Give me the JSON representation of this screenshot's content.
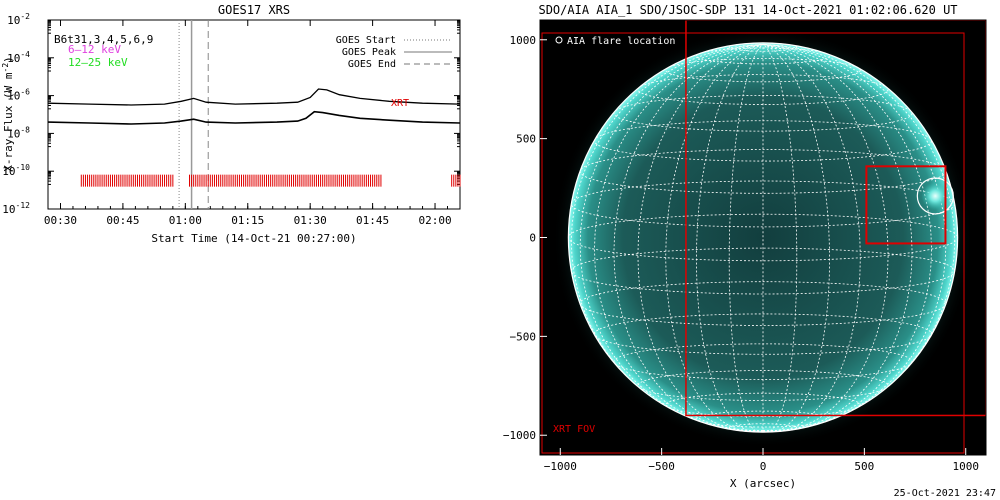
{
  "footer_timestamp": "25-Oct-2021 23:47",
  "colors": {
    "flux_line": "#000000",
    "band_6_12": "#e040e0",
    "band_12_25": "#22dd22",
    "xrt_marks": "#e00000",
    "euv_disk": "#2fbfb4",
    "grid": "#ffffff",
    "fov": "#e00000"
  },
  "chart_data": [
    {
      "type": "line",
      "title": "GOES17 XRS",
      "xlabel": "Start Time (14-Oct-21 00:27:00)",
      "ylabel": "X-ray Flux (W m⁻²)",
      "ylabel_main": "X-ray Flux (W m",
      "ylabel_exp": "-2",
      "ylabel_close": ")",
      "yscale": "log",
      "ylim_exponents": [
        -12,
        -2
      ],
      "y_tick_base": "10",
      "y_tick_exponents": [
        "-12",
        "-10",
        "-8",
        "-6",
        "-4",
        "-2"
      ],
      "xlim_minutes_after_0027": [
        0,
        99
      ],
      "x_ticks": [
        {
          "minutes": 3,
          "label": "00:30"
        },
        {
          "minutes": 18,
          "label": "00:45"
        },
        {
          "minutes": 33,
          "label": "01:00"
        },
        {
          "minutes": 48,
          "label": "01:15"
        },
        {
          "minutes": 63,
          "label": "01:30"
        },
        {
          "minutes": 78,
          "label": "01:45"
        },
        {
          "minutes": 93,
          "label": "02:00"
        }
      ],
      "band_labels": [
        {
          "text": "B6t31,3,4,5,6,9",
          "color": "#000000"
        },
        {
          "text": "6–12 keV",
          "color": "#e040e0"
        },
        {
          "text": "12–25 keV",
          "color": "#22dd22"
        }
      ],
      "legend": {
        "placement": "top-right",
        "entries": [
          {
            "label": "GOES Start",
            "style": "dotted"
          },
          {
            "label": "GOES Peak",
            "style": "solid"
          },
          {
            "label": "GOES End",
            "style": "dashed"
          }
        ]
      },
      "xrt_label": "XRT",
      "goes_start_minute": 31.5,
      "goes_peak_minute": 34.5,
      "goes_end_minute": 38.5,
      "series": [
        {
          "name": "XRS long",
          "x_minutes": [
            0,
            10,
            20,
            28,
            32,
            35,
            38,
            45,
            55,
            60,
            63,
            65,
            67,
            70,
            75,
            82,
            90,
            99
          ],
          "log10_flux": [
            -6.4,
            -6.45,
            -6.5,
            -6.45,
            -6.3,
            -6.15,
            -6.35,
            -6.45,
            -6.4,
            -6.35,
            -6.1,
            -5.65,
            -5.7,
            -5.95,
            -6.15,
            -6.3,
            -6.4,
            -6.45
          ]
        },
        {
          "name": "XRS short",
          "x_minutes": [
            0,
            10,
            20,
            28,
            32,
            35,
            38,
            45,
            55,
            60,
            62,
            64,
            66,
            70,
            75,
            82,
            90,
            99
          ],
          "log10_flux": [
            -7.4,
            -7.45,
            -7.5,
            -7.45,
            -7.35,
            -7.25,
            -7.4,
            -7.45,
            -7.4,
            -7.35,
            -7.2,
            -6.85,
            -6.9,
            -7.05,
            -7.2,
            -7.3,
            -7.4,
            -7.45
          ]
        }
      ],
      "xrt_observation_segments_minutes": [
        [
          8,
          30
        ],
        [
          34,
          80
        ],
        [
          97,
          99
        ]
      ],
      "xrt_observation_level_log10": -10.5
    },
    {
      "type": "heatmap",
      "title": "SDO/AIA AIA_1 SDO/JSOC-SDP 131 14-Oct-2021 01:02:06.620 UT",
      "xlabel": "X (arcsec)",
      "xlim": [
        -1100,
        1100
      ],
      "ylim": [
        -1100,
        1100
      ],
      "x_ticks": [
        -1000,
        -500,
        0,
        500,
        1000
      ],
      "y_ticks": [
        1000,
        500,
        0,
        -500,
        -1000
      ],
      "solar_radius_arcsec": 960,
      "flare_legend": "AIA flare location",
      "flare_location_arcsec": [
        850,
        210
      ],
      "xrt_fov_label": "XRT FOV",
      "xrt_fov_arcsec": {
        "x": [
          -380,
          1100
        ],
        "y": [
          -900,
          1100
        ]
      },
      "xrt_zoom_box_arcsec": {
        "x": [
          510,
          900
        ],
        "y": [
          -30,
          360
        ]
      }
    }
  ]
}
